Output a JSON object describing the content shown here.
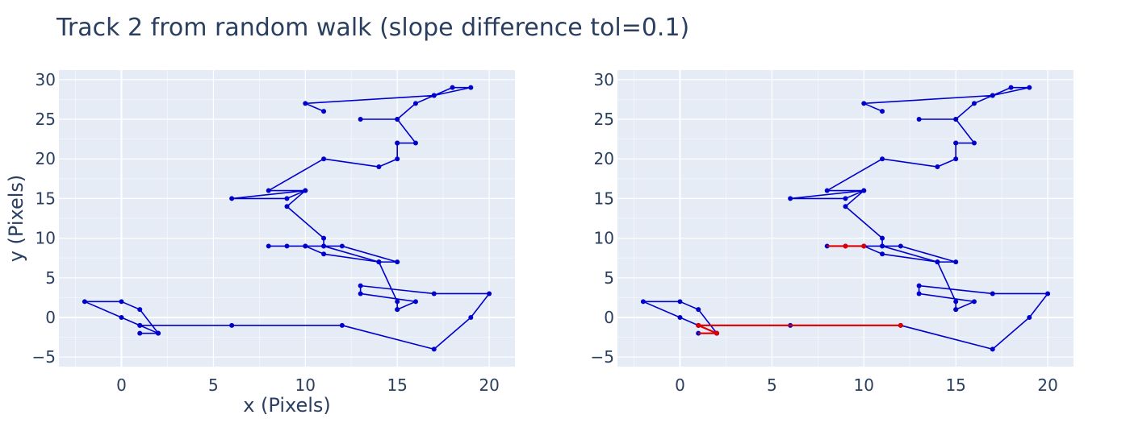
{
  "title": "Track 2 from random walk (slope difference tol=0.1)",
  "colors": {
    "plot_bg": "#e5ecf6",
    "grid": "#ffffff",
    "track": "#0000cc",
    "highlight": "#dd0000",
    "text": "#2a3f5f"
  },
  "chart_data": [
    {
      "type": "line",
      "xlabel": "x (Pixels)",
      "ylabel": "y (Pixels)",
      "xlim": [
        -3.4,
        21.4
      ],
      "ylim": [
        -6.2,
        31.2
      ],
      "xticks": [
        0,
        5,
        10,
        15,
        20
      ],
      "yticks": [
        -5,
        0,
        5,
        10,
        15,
        20,
        25,
        30
      ],
      "grid": true,
      "series": [
        {
          "role": "track",
          "x": [
            11,
            10,
            17,
            18,
            19,
            17,
            16,
            15,
            13,
            15,
            16,
            15,
            15,
            15,
            14,
            11,
            8,
            10,
            6,
            9,
            10,
            9,
            11,
            11,
            12,
            15,
            14,
            11,
            10,
            9,
            8,
            10,
            11,
            14,
            15,
            15,
            15,
            16,
            13,
            13,
            17,
            20,
            19,
            17,
            12,
            6,
            1,
            2,
            1,
            0,
            -2,
            0,
            1,
            2,
            1
          ],
          "y": [
            26,
            27,
            28,
            29,
            29,
            28,
            27,
            25,
            25,
            25,
            22,
            22,
            22,
            20,
            19,
            20,
            16,
            16,
            15,
            15,
            16,
            14,
            10,
            9,
            9,
            7,
            7,
            8,
            9,
            9,
            9,
            9,
            9,
            7,
            2,
            1,
            1,
            2,
            3,
            4,
            3,
            3,
            0,
            -4,
            -1,
            -1,
            -1,
            -2,
            -1,
            0,
            2,
            2,
            1,
            -2,
            -2
          ]
        }
      ]
    },
    {
      "type": "line",
      "xlabel": "",
      "ylabel": "",
      "xlim": [
        -3.4,
        21.4
      ],
      "ylim": [
        -6.2,
        31.2
      ],
      "xticks": [
        0,
        5,
        10,
        15,
        20
      ],
      "yticks": [
        -5,
        0,
        5,
        10,
        15,
        20,
        25,
        30
      ],
      "grid": true,
      "series": [
        {
          "role": "track",
          "x": [
            11,
            10,
            17,
            18,
            19,
            17,
            16,
            15,
            13,
            15,
            16,
            15,
            15,
            15,
            14,
            11,
            8,
            10,
            6,
            9,
            10,
            9,
            11,
            11,
            12,
            15,
            14,
            11,
            10,
            9,
            8,
            10,
            11,
            14,
            15,
            15,
            15,
            16,
            13,
            13,
            17,
            20,
            19,
            17,
            12,
            6,
            1,
            2,
            1,
            0,
            -2,
            0,
            1,
            2,
            1
          ],
          "y": [
            26,
            27,
            28,
            29,
            29,
            28,
            27,
            25,
            25,
            25,
            22,
            22,
            22,
            20,
            19,
            20,
            16,
            16,
            15,
            15,
            16,
            14,
            10,
            9,
            9,
            7,
            7,
            8,
            9,
            9,
            9,
            9,
            9,
            7,
            2,
            1,
            1,
            2,
            3,
            4,
            3,
            3,
            0,
            -4,
            -1,
            -1,
            -1,
            -2,
            -1,
            0,
            2,
            2,
            1,
            -2,
            -2
          ]
        },
        {
          "role": "highlight",
          "x": [
            8,
            10
          ],
          "y": [
            9,
            9
          ],
          "markers": [
            [
              9,
              9
            ],
            [
              10,
              9
            ]
          ]
        },
        {
          "role": "highlight",
          "x": [
            1,
            12,
            1,
            2,
            1
          ],
          "y": [
            -1,
            -1,
            -1,
            -2,
            -2
          ],
          "markers": [
            [
              1,
              -1
            ],
            [
              2,
              -2
            ],
            [
              12,
              -1
            ]
          ]
        }
      ]
    }
  ]
}
